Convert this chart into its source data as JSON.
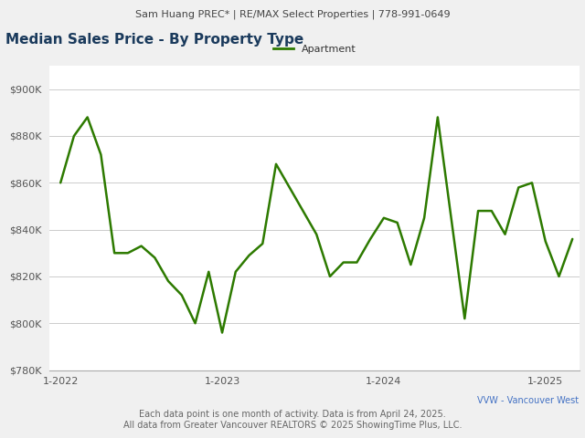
{
  "header_text": "Sam Huang PREC* | RE/MAX Select Properties | 778-991-0649",
  "title": "Median Sales Price - By Property Type",
  "legend_label": "Apartment",
  "line_color": "#2d7a00",
  "footer_right": "VVW - Vancouver West",
  "footer_center": "Each data point is one month of activity. Data is from April 24, 2025.",
  "footer_bottom": "All data from Greater Vancouver REALTORS © 2025 ShowingTime Plus, LLC.",
  "ylim_min": 780000,
  "ylim_max": 910000,
  "ytick_values": [
    780000,
    800000,
    820000,
    840000,
    860000,
    880000,
    900000
  ],
  "background_color": "#f0f0f0",
  "plot_bg_color": "#ffffff",
  "x_tick_labels": [
    "1-2022",
    "1-2023",
    "1-2024",
    "1-2025"
  ],
  "x_tick_positions": [
    0,
    12,
    24,
    36
  ],
  "values": [
    860000,
    880000,
    888000,
    872000,
    830000,
    830000,
    833000,
    828000,
    818000,
    812000,
    800000,
    822000,
    796000,
    822000,
    829000,
    834000,
    868000,
    858000,
    848000,
    838000,
    820000,
    826000,
    826000,
    836000,
    845000,
    843000,
    825000,
    845000,
    888000,
    845000,
    802000,
    848000,
    848000,
    838000,
    858000,
    860000,
    835000,
    820000,
    836000
  ],
  "num_months": 39,
  "header_fontsize": 8,
  "title_fontsize": 11,
  "footer_fontsize": 7,
  "tick_fontsize": 8,
  "legend_fontsize": 8,
  "title_color": "#1a3a5c",
  "header_color": "#444444",
  "footer_center_color": "#666666",
  "footer_right_color": "#4472c4"
}
